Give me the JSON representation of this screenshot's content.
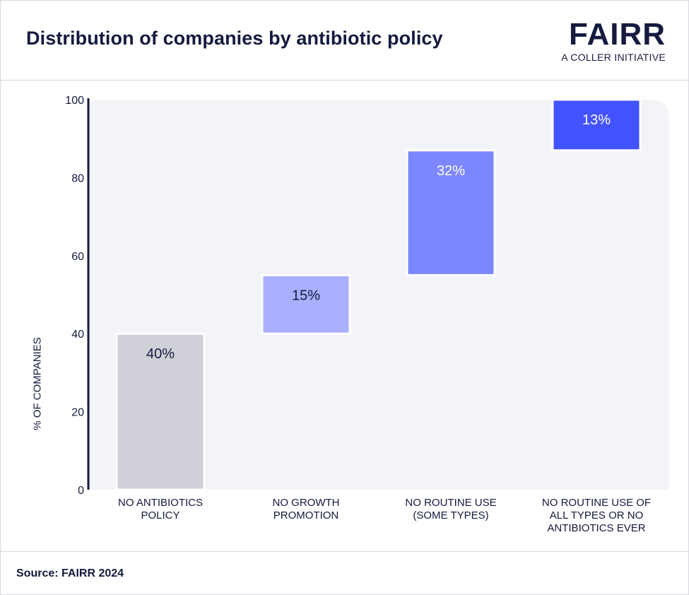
{
  "header": {
    "title": "Distribution of companies by antibiotic policy",
    "logo_word": "FAIRR",
    "logo_tagline": "A COLLER INITIATIVE"
  },
  "footer": {
    "source": "Source: FAIRR 2024"
  },
  "colors": {
    "plot_bg": "#f3f4f7",
    "axis": "#151a3e",
    "bar_1": "#cfd0d8",
    "bar_2": "#aab0ff",
    "bar_3": "#7c87ff",
    "bar_4": "#4353ff"
  },
  "chart_data": {
    "type": "bar",
    "subtype": "waterfall",
    "title": "Distribution of companies by antibiotic policy",
    "xlabel": "",
    "ylabel": "% OF COMPANIES",
    "ylim": [
      0,
      100
    ],
    "yticks": [
      0,
      20,
      40,
      60,
      80,
      100
    ],
    "grid": false,
    "categories": [
      [
        "NO ANTIBIOTICS",
        "POLICY"
      ],
      [
        "NO GROWTH",
        "PROMOTION"
      ],
      [
        "NO ROUTINE USE",
        "(SOME TYPES)"
      ],
      [
        "NO ROUTINE USE OF",
        "ALL TYPES OR NO",
        "ANTIBIOTICS EVER"
      ]
    ],
    "values": [
      40,
      15,
      32,
      13
    ],
    "labels": [
      "40%",
      "15%",
      "32%",
      "13%"
    ],
    "starts": [
      0,
      40,
      55,
      87
    ]
  }
}
